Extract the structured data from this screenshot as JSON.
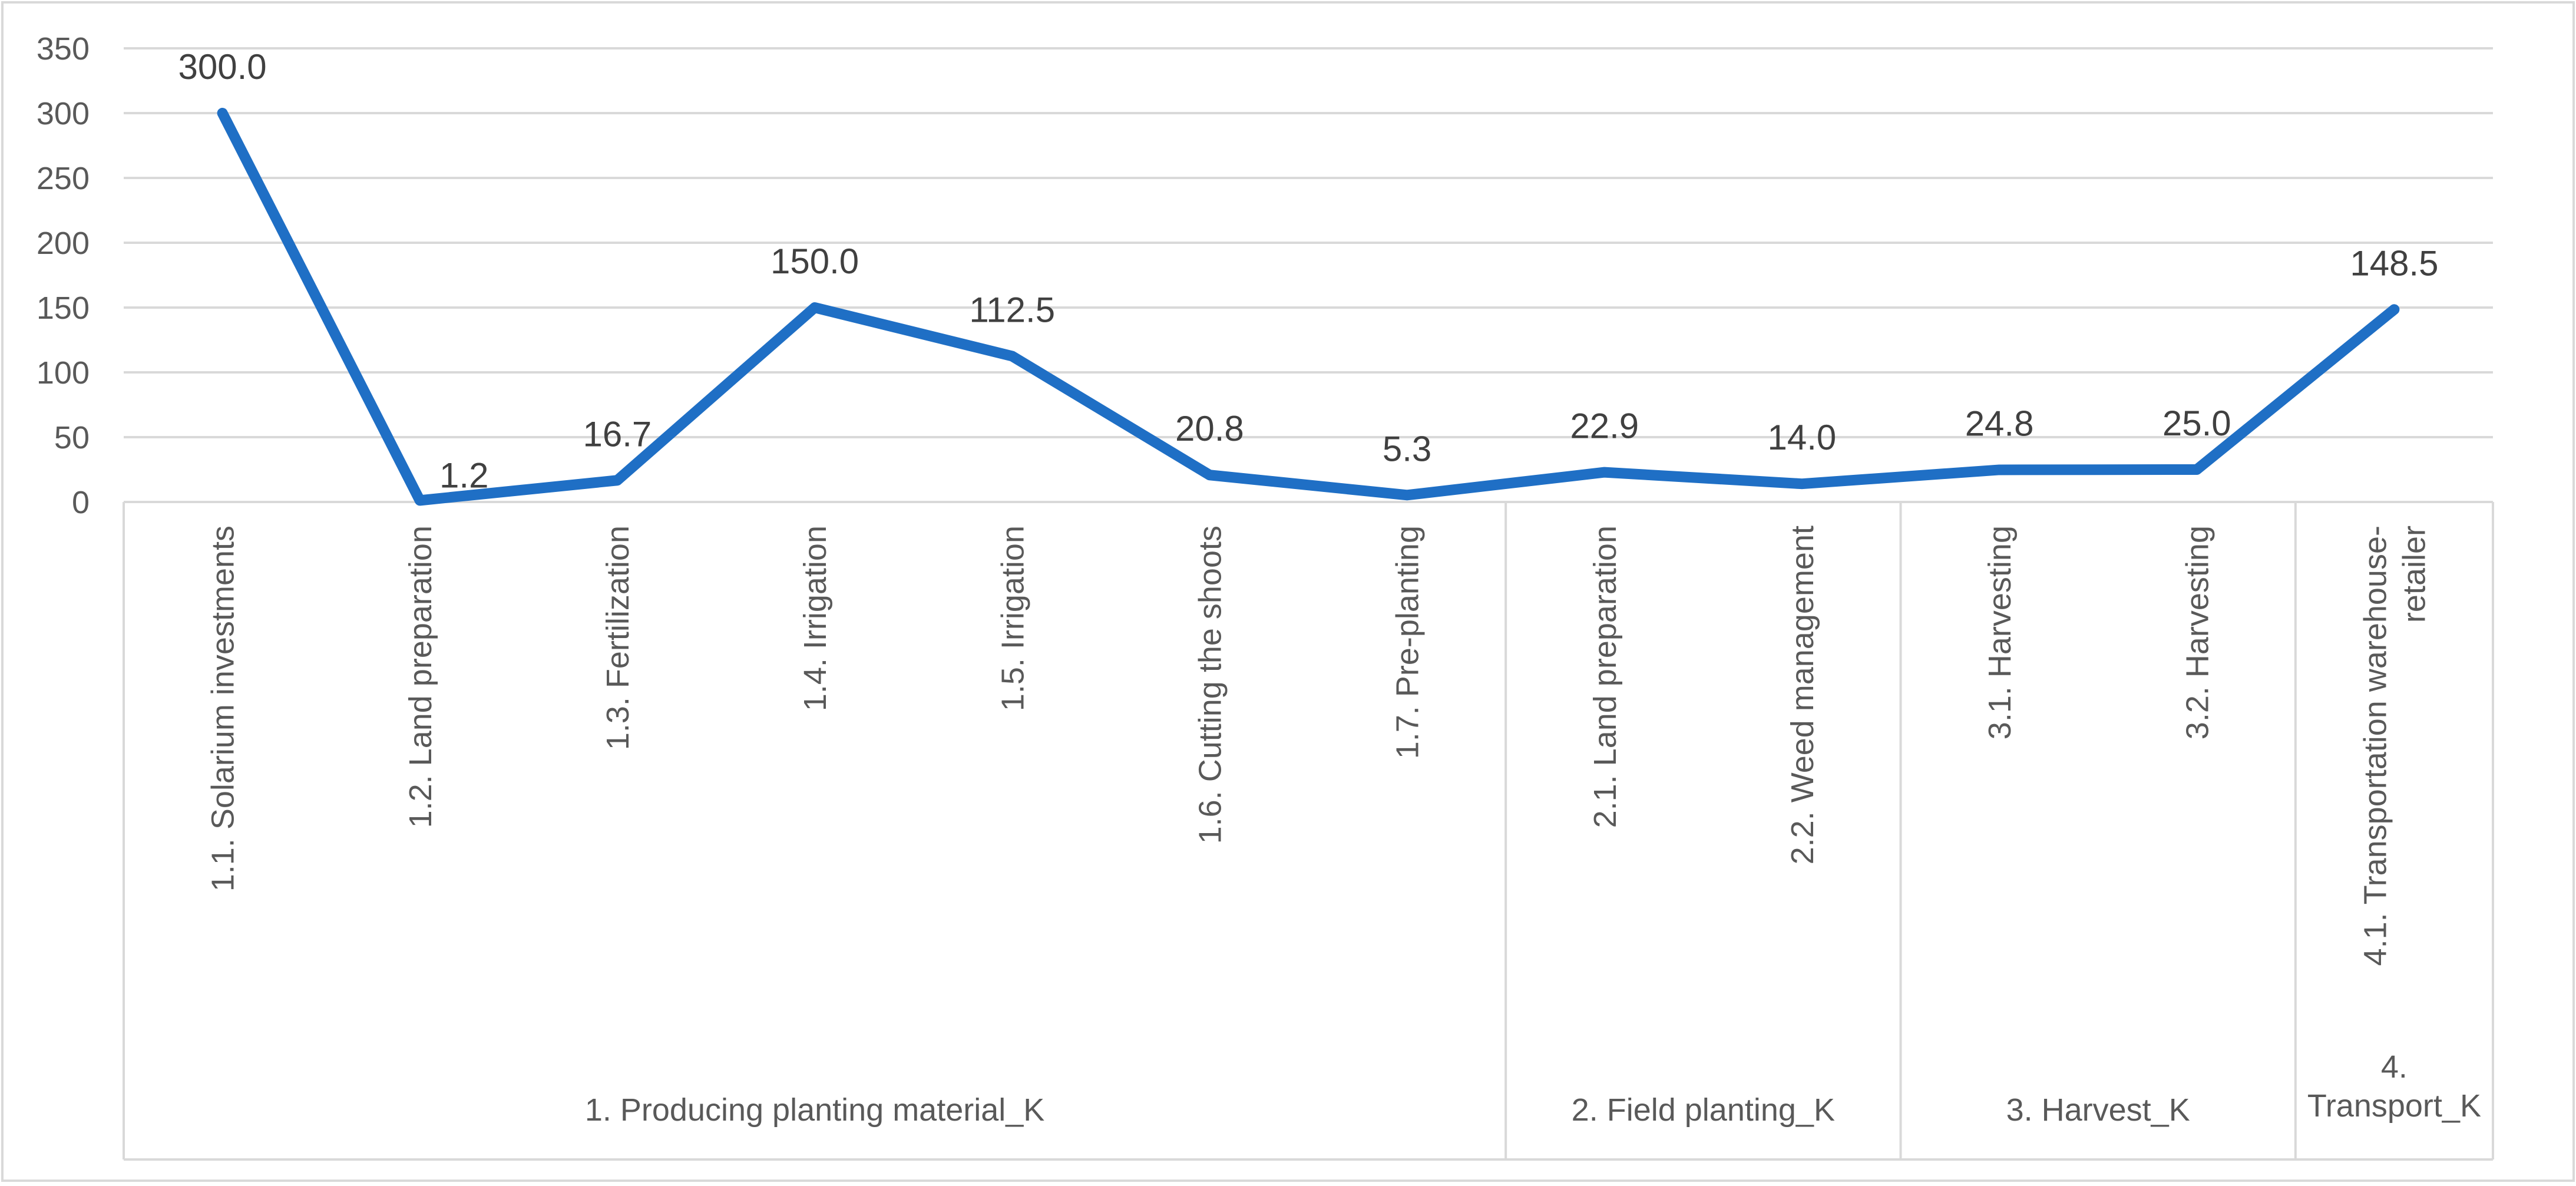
{
  "chart_data": {
    "type": "line",
    "categories": [
      "1.1. Solarium investments",
      "1.2. Land preparation",
      "1.3. Fertilization",
      "1.4. Irrigation",
      "1.5. Irrigation",
      "1.6. Cutting the shoots",
      "1.7. Pre-planting",
      "2.1. Land preparation",
      "2.2. Weed management",
      "3.1. Harvesting",
      "3.2. Harvesting",
      "4.1. Transportation warehouse-retailer"
    ],
    "category_lines": [
      [
        "1.1. Solarium investments"
      ],
      [
        "1.2. Land preparation"
      ],
      [
        "1.3. Fertilization"
      ],
      [
        "1.4. Irrigation"
      ],
      [
        "1.5. Irrigation"
      ],
      [
        "1.6. Cutting the shoots"
      ],
      [
        "1.7. Pre-planting"
      ],
      [
        "2.1. Land preparation"
      ],
      [
        "2.2. Weed management"
      ],
      [
        "3.1. Harvesting"
      ],
      [
        "3.2. Harvesting"
      ],
      [
        "4.1. Transportation warehouse-",
        "retailer"
      ]
    ],
    "groups": [
      {
        "label": "1. Producing planting material_K",
        "lines": [
          "1. Producing planting material_K"
        ],
        "count": 7
      },
      {
        "label": "2. Field planting_K",
        "lines": [
          "2. Field planting_K"
        ],
        "count": 2
      },
      {
        "label": "3. Harvest_K",
        "lines": [
          "3. Harvest_K"
        ],
        "count": 2
      },
      {
        "label": "4. Transport_K",
        "lines": [
          "4.",
          "Transport_K"
        ],
        "count": 1
      }
    ],
    "series": [
      {
        "values": [
          300.0,
          1.2,
          16.7,
          150.0,
          112.5,
          20.8,
          5.3,
          22.9,
          14.0,
          24.8,
          25.0,
          148.5
        ],
        "labels": [
          "300.0",
          "1.2",
          "16.7",
          "150.0",
          "112.5",
          "20.8",
          "5.3",
          "22.9",
          "14.0",
          "24.8",
          "25.0",
          "148.5"
        ],
        "color": "#1F6FC5"
      }
    ],
    "yticks": [
      0,
      50,
      100,
      150,
      200,
      250,
      300,
      350
    ],
    "ylim": [
      0,
      350
    ],
    "title": "",
    "xlabel": "",
    "ylabel": "",
    "grid": true,
    "legend": "none",
    "colors": {
      "grid": "#D9D9D9",
      "axis": "#D9D9D9",
      "line": "#1F6FC5",
      "text": "#595959",
      "datalabel": "#404040"
    }
  }
}
